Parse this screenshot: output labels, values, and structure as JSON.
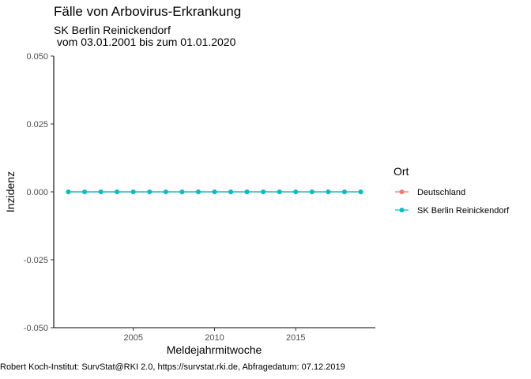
{
  "chart_data": {
    "type": "line",
    "title": "Fälle von Arbovirus-Erkrankung",
    "subtitle": "SK Berlin Reinickendorf\n vom 03.01.2001 bis zum 01.01.2020",
    "caption": "Robert Koch-Institut: SurvStat@RKI 2.0, https://survstat.rki.de, Abfragedatum: 07.12.2019",
    "xlabel": "Meldejahrmitwoche",
    "ylabel": "Inzidenz",
    "xlim": [
      2000.1,
      2019.9
    ],
    "ylim": [
      -0.05,
      0.05
    ],
    "x_ticks": [
      2005,
      2010,
      2015
    ],
    "y_ticks": [
      "-0.050",
      "-0.025",
      "0.000",
      "0.025",
      "0.050"
    ],
    "y_tick_values": [
      -0.05,
      -0.025,
      0.0,
      0.025,
      0.05
    ],
    "legend": {
      "title": "Ort",
      "placement": "right"
    },
    "series": [
      {
        "name": "Deutschland",
        "color": "#F8766D",
        "x": [
          2001,
          2002,
          2003,
          2004,
          2005,
          2006,
          2007,
          2008,
          2009,
          2010,
          2011,
          2012,
          2013,
          2014,
          2015,
          2016,
          2017,
          2018,
          2019
        ],
        "values": [
          0,
          0,
          0,
          0,
          0,
          0,
          0,
          0,
          0,
          0,
          0,
          0,
          0,
          0,
          0,
          0,
          0,
          0,
          0
        ]
      },
      {
        "name": "SK Berlin Reinickendorf",
        "color": "#00BFC4",
        "x": [
          2001,
          2002,
          2003,
          2004,
          2005,
          2006,
          2007,
          2008,
          2009,
          2010,
          2011,
          2012,
          2013,
          2014,
          2015,
          2016,
          2017,
          2018,
          2019
        ],
        "values": [
          0,
          0,
          0,
          0,
          0,
          0,
          0,
          0,
          0,
          0,
          0,
          0,
          0,
          0,
          0,
          0,
          0,
          0,
          0
        ]
      }
    ]
  }
}
